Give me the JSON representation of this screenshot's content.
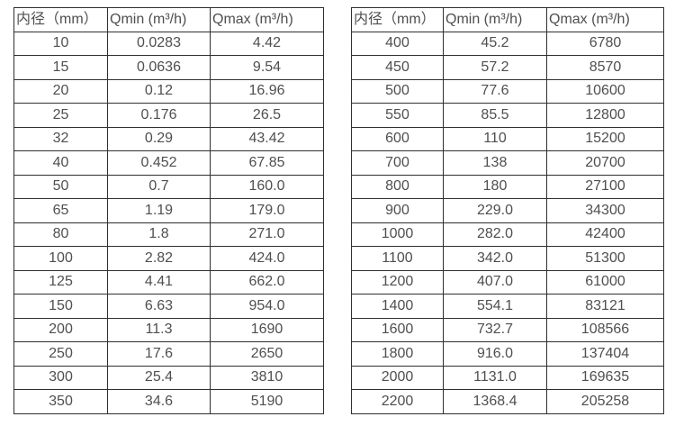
{
  "colors": {
    "text": "#4f4f4f",
    "border": "#2f2f2f",
    "background": "#ffffff"
  },
  "table_left": {
    "headers": [
      "内径（mm）",
      "Qmin (m³/h)",
      "Qmax (m³/h)"
    ],
    "rows": [
      [
        "10",
        "0.0283",
        "4.42"
      ],
      [
        "15",
        "0.0636",
        "9.54"
      ],
      [
        "20",
        "0.12",
        "16.96"
      ],
      [
        "25",
        "0.176",
        "26.5"
      ],
      [
        "32",
        "0.29",
        "43.42"
      ],
      [
        "40",
        "0.452",
        "67.85"
      ],
      [
        "50",
        "0.7",
        "160.0"
      ],
      [
        "65",
        "1.19",
        "179.0"
      ],
      [
        "80",
        "1.8",
        "271.0"
      ],
      [
        "100",
        "2.82",
        "424.0"
      ],
      [
        "125",
        "4.41",
        "662.0"
      ],
      [
        "150",
        "6.63",
        "954.0"
      ],
      [
        "200",
        "11.3",
        "1690"
      ],
      [
        "250",
        "17.6",
        "2650"
      ],
      [
        "300",
        "25.4",
        "3810"
      ],
      [
        "350",
        "34.6",
        "5190"
      ]
    ]
  },
  "table_right": {
    "headers": [
      "内径（mm）",
      "Qmin (m³/h)",
      "Qmax (m³/h)"
    ],
    "rows": [
      [
        "400",
        "45.2",
        "6780"
      ],
      [
        "450",
        "57.2",
        "8570"
      ],
      [
        "500",
        "77.6",
        "10600"
      ],
      [
        "550",
        "85.5",
        "12800"
      ],
      [
        "600",
        "110",
        "15200"
      ],
      [
        "700",
        "138",
        "20700"
      ],
      [
        "800",
        "180",
        "27100"
      ],
      [
        "900",
        "229.0",
        "34300"
      ],
      [
        "1000",
        "282.0",
        "42400"
      ],
      [
        "1100",
        "342.0",
        "51300"
      ],
      [
        "1200",
        "407.0",
        "61000"
      ],
      [
        "1400",
        "554.1",
        "83121"
      ],
      [
        "1600",
        "732.7",
        "108566"
      ],
      [
        "1800",
        "916.0",
        "137404"
      ],
      [
        "2000",
        "1131.0",
        "169635"
      ],
      [
        "2200",
        "1368.4",
        "205258"
      ]
    ]
  }
}
